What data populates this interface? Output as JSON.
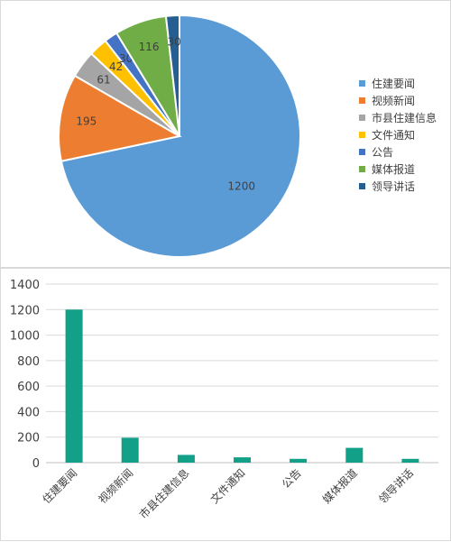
{
  "chart_data": [
    {
      "type": "pie",
      "categories": [
        "住建要闻",
        "视频新闻",
        "市县住建信息",
        "文件通知",
        "公告",
        "媒体报道",
        "领导讲话"
      ],
      "values": [
        1200,
        195,
        61,
        42,
        30,
        116,
        30
      ],
      "legend_position": "right",
      "colors": [
        "#5B9BD5",
        "#ED7D31",
        "#A5A5A5",
        "#FFC000",
        "#4472C4",
        "#70AD47",
        "#255E91"
      ]
    },
    {
      "type": "bar",
      "categories": [
        "住建要闻",
        "视频新闻",
        "市县住建信息",
        "文件通知",
        "公告",
        "媒体报道",
        "领导讲话"
      ],
      "values": [
        1200,
        195,
        61,
        42,
        30,
        116,
        30
      ],
      "ylim": [
        0,
        1400
      ],
      "yticks": [
        0,
        200,
        400,
        600,
        800,
        1000,
        1200,
        1400
      ],
      "grid": true,
      "bar_color": "#12A088"
    }
  ]
}
